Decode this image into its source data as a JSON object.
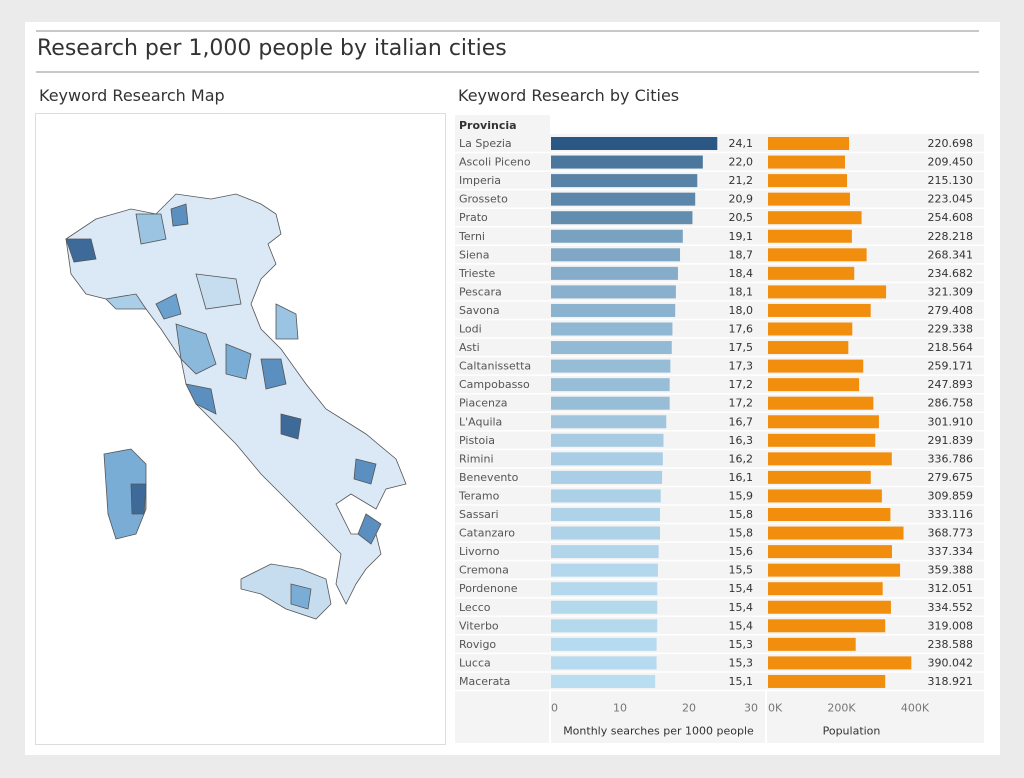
{
  "title": "Research per 1,000 people by italian cities",
  "map_title": "Keyword Research Map",
  "chart_title": "Keyword Research by Cities",
  "chart_data": {
    "type": "bar",
    "column_header": "Provincia",
    "categories": [
      "La Spezia",
      "Ascoli Piceno",
      "Imperia",
      "Grosseto",
      "Prato",
      "Terni",
      "Siena",
      "Trieste",
      "Pescara",
      "Savona",
      "Lodi",
      "Asti",
      "Caltanissetta",
      "Campobasso",
      "Piacenza",
      "L'Aquila",
      "Pistoia",
      "Rimini",
      "Benevento",
      "Teramo",
      "Sassari",
      "Catanzaro",
      "Livorno",
      "Cremona",
      "Pordenone",
      "Lecco",
      "Viterbo",
      "Rovigo",
      "Lucca",
      "Macerata"
    ],
    "series": [
      {
        "name": "Monthly searches per 1000 people",
        "values": [
          24.1,
          22.0,
          21.2,
          20.9,
          20.5,
          19.1,
          18.7,
          18.4,
          18.1,
          18.0,
          17.6,
          17.5,
          17.3,
          17.2,
          17.2,
          16.7,
          16.3,
          16.2,
          16.1,
          15.9,
          15.8,
          15.8,
          15.6,
          15.5,
          15.4,
          15.4,
          15.4,
          15.3,
          15.3,
          15.1
        ],
        "labels": [
          "24,1",
          "22,0",
          "21,2",
          "20,9",
          "20,5",
          "19,1",
          "18,7",
          "18,4",
          "18,1",
          "18,0",
          "17,6",
          "17,5",
          "17,3",
          "17,2",
          "17,2",
          "16,7",
          "16,3",
          "16,2",
          "16,1",
          "15,9",
          "15,8",
          "15,8",
          "15,6",
          "15,5",
          "15,4",
          "15,4",
          "15,4",
          "15,3",
          "15,3",
          "15,1"
        ],
        "xlim": [
          0,
          30
        ],
        "ticks": [
          "0",
          "10",
          "20",
          "30"
        ],
        "tick_values": [
          0,
          10,
          20,
          30
        ],
        "color_range": [
          "#b9ddf1",
          "#2a5783"
        ]
      },
      {
        "name": "Population",
        "values": [
          220698,
          209450,
          215130,
          223045,
          254608,
          228218,
          268341,
          234682,
          321309,
          279408,
          229338,
          218564,
          259171,
          247893,
          286758,
          301910,
          291839,
          336786,
          279675,
          309859,
          333116,
          368773,
          337334,
          359388,
          312051,
          334552,
          319008,
          238588,
          390042,
          318921
        ],
        "labels": [
          "220.698",
          "209.450",
          "215.130",
          "223.045",
          "254.608",
          "228.218",
          "268.341",
          "234.682",
          "321.309",
          "279.408",
          "229.338",
          "218.564",
          "259.171",
          "247.893",
          "286.758",
          "301.910",
          "291.839",
          "336.786",
          "279.675",
          "309.859",
          "333.116",
          "368.773",
          "337.334",
          "359.388",
          "312.051",
          "334.552",
          "319.008",
          "238.588",
          "390.042",
          "318.921"
        ],
        "xlim": [
          0,
          400000
        ],
        "ticks": [
          "0K",
          "200K",
          "400K"
        ],
        "tick_values": [
          0,
          200000,
          400000
        ],
        "color": "#f28e0e"
      }
    ],
    "grid": false
  }
}
